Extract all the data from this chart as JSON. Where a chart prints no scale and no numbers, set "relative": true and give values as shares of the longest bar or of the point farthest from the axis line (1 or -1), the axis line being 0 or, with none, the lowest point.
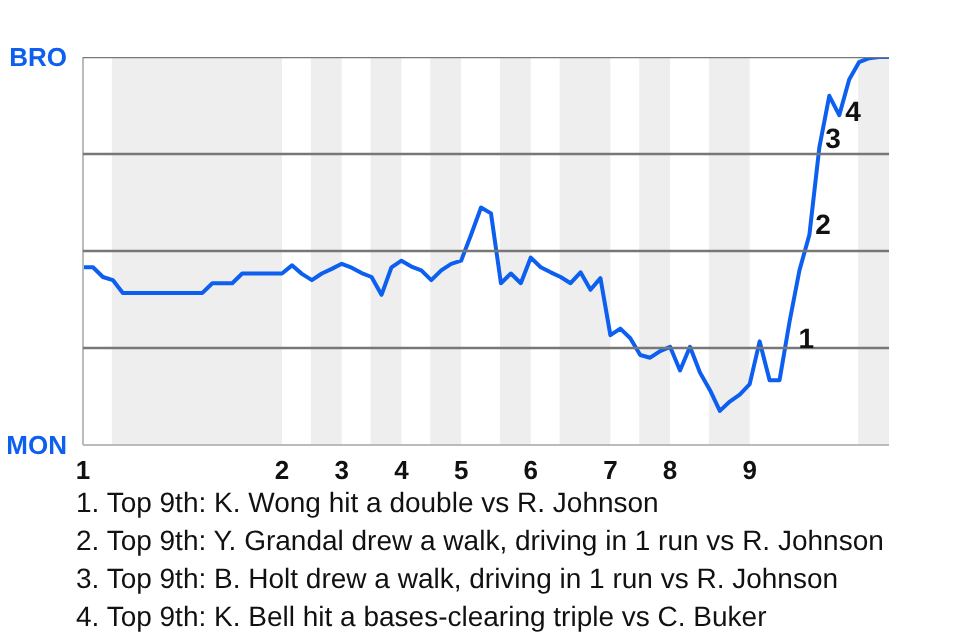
{
  "chart_data": {
    "type": "line",
    "relative": true,
    "tick_labels": "x",
    "categories": [
      "1",
      null,
      null,
      null,
      null,
      null,
      null,
      null,
      null,
      null,
      null,
      null,
      null,
      null,
      null,
      null,
      null,
      null,
      null,
      null,
      "2",
      null,
      null,
      null,
      null,
      null,
      "3",
      null,
      null,
      null,
      null,
      null,
      "4",
      null,
      null,
      null,
      null,
      null,
      "5",
      null,
      null,
      null,
      null,
      null,
      null,
      "6",
      null,
      null,
      null,
      null,
      null,
      null,
      null,
      "7",
      null,
      null,
      null,
      null,
      null,
      "8",
      null,
      null,
      null,
      null,
      null,
      null,
      null,
      "9",
      null,
      null,
      null,
      null,
      null,
      null,
      null,
      null,
      null,
      null,
      null,
      null,
      null,
      null
    ],
    "series": [
      {
        "color": "#0d5ff0",
        "values": [
          0.458,
          0.458,
          0.433,
          0.425,
          0.392,
          0.392,
          0.392,
          0.392,
          0.392,
          0.392,
          0.392,
          0.392,
          0.392,
          0.417,
          0.417,
          0.417,
          0.442,
          0.442,
          0.442,
          0.442,
          0.442,
          0.463,
          0.441,
          0.425,
          0.442,
          0.454,
          0.467,
          0.457,
          0.443,
          0.433,
          0.387,
          0.458,
          0.475,
          0.46,
          0.45,
          0.425,
          0.45,
          0.467,
          0.475,
          0.542,
          0.612,
          0.597,
          0.417,
          0.442,
          0.417,
          0.483,
          0.458,
          0.445,
          0.433,
          0.417,
          0.445,
          0.4,
          0.43,
          0.283,
          0.3,
          0.275,
          0.232,
          0.225,
          0.242,
          0.253,
          0.192,
          0.253,
          0.187,
          0.142,
          0.088,
          0.112,
          0.13,
          0.157,
          0.267,
          0.167,
          0.167,
          0.317,
          0.45,
          0.542,
          0.767,
          0.9,
          0.85,
          0.942,
          0.987,
          0.997,
          1.0,
          1.0
        ]
      }
    ],
    "ref_lines": [
      {
        "axis": "y",
        "value": 0.25,
        "color": "#777777"
      },
      {
        "axis": "y",
        "value": 0.5,
        "color": "#777777"
      },
      {
        "axis": "y",
        "value": 0.75,
        "color": "#777777"
      },
      {
        "axis": "y",
        "value": 1,
        "color": "#777777"
      }
    ],
    "annotations": [
      {
        "text": "BRO"
      },
      {
        "text": "MON"
      },
      "1",
      "2",
      "3",
      "4",
      "1. Top 9th: K. Wong hit a double vs R. Johnson",
      "2. Top 9th: Y. Grandal drew a walk, driving in 1 run vs R. Johnson",
      "3. Top 9th: B. Holt drew a walk, driving in 1 run vs R. Johnson",
      "4. Top 9th: K. Bell hit a bases-clearing triple vs C. Buker"
    ]
  }
}
